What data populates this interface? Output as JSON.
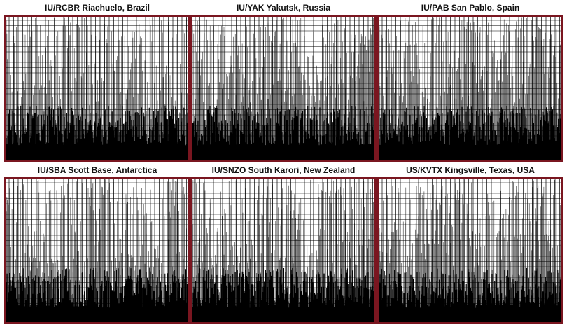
{
  "colors": {
    "frame": "#7a1620",
    "trace": "#000000",
    "grid": "#000000",
    "background": "#ffffff"
  },
  "chart_data": [
    {
      "type": "line",
      "title": "IU/RCBR Riachuelo, Brazil",
      "xlabel": "",
      "ylabel": "",
      "grid": true,
      "legend": "none",
      "seed": 11,
      "density": 0.62,
      "baseline": 0.93
    },
    {
      "type": "line",
      "title": "IU/YAK Yakutsk, Russia",
      "xlabel": "",
      "ylabel": "",
      "grid": true,
      "legend": "none",
      "seed": 23,
      "density": 0.78,
      "baseline": 0.96
    },
    {
      "type": "line",
      "title": "IU/PAB San Pablo, Spain",
      "xlabel": "",
      "ylabel": "",
      "grid": true,
      "legend": "none",
      "seed": 37,
      "density": 0.7,
      "baseline": 0.94
    },
    {
      "type": "line",
      "title": "IU/SBA Scott Base, Antarctica",
      "xlabel": "",
      "ylabel": "",
      "grid": true,
      "legend": "none",
      "seed": 41,
      "density": 0.6,
      "baseline": 0.93
    },
    {
      "type": "line",
      "title": "IU/SNZO South Karori, New Zealand",
      "xlabel": "",
      "ylabel": "",
      "grid": true,
      "legend": "none",
      "seed": 53,
      "density": 0.66,
      "baseline": 0.95
    },
    {
      "type": "line",
      "title": "US/KVTX Kingsville, Texas, USA",
      "xlabel": "",
      "ylabel": "",
      "grid": true,
      "legend": "none",
      "seed": 67,
      "density": 0.72,
      "baseline": 0.95
    }
  ]
}
